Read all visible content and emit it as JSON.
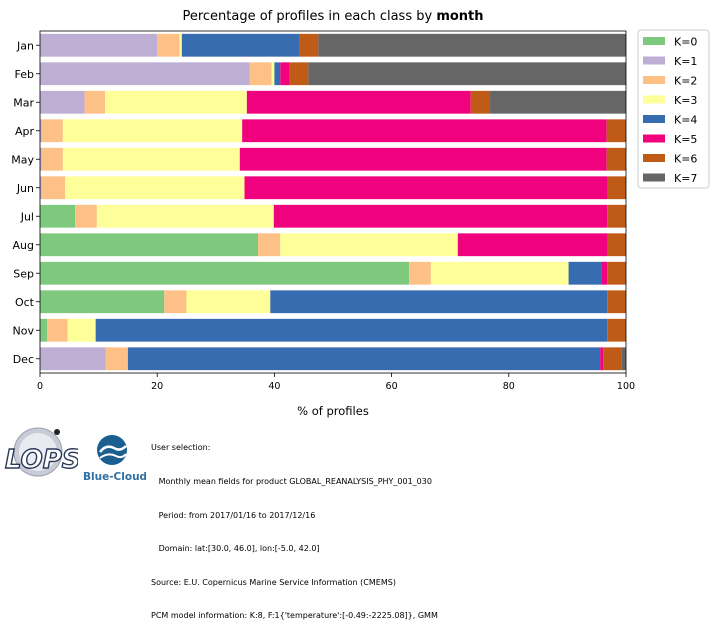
{
  "chart_data": {
    "type": "bar",
    "orientation": "horizontal",
    "stacked": true,
    "title_prefix": "Percentage of profiles in each class by ",
    "title_bold": "month",
    "xlabel": "% of profiles",
    "ylabel": "",
    "xlim": [
      0,
      100
    ],
    "x_ticks": [
      "0",
      "20",
      "40",
      "60",
      "80",
      "100"
    ],
    "grid": false,
    "legend_position": "outside top-right",
    "categories": [
      "Jan",
      "Feb",
      "Mar",
      "Apr",
      "May",
      "Jun",
      "Jul",
      "Aug",
      "Sep",
      "Oct",
      "Nov",
      "Dec"
    ],
    "series": [
      {
        "name": "K=0",
        "color": "#7fc97f",
        "values": [
          0,
          0,
          0,
          0,
          0,
          0,
          6.0,
          37.2,
          63.0,
          21.2,
          1.2,
          0
        ]
      },
      {
        "name": "K=1",
        "color": "#beaed4",
        "values": [
          20.0,
          35.8,
          7.6,
          0.3,
          0.3,
          0.3,
          0,
          0,
          0,
          0,
          0,
          11.2
        ]
      },
      {
        "name": "K=2",
        "color": "#fdc086",
        "values": [
          3.8,
          3.7,
          3.5,
          3.6,
          3.6,
          4.0,
          3.7,
          3.8,
          3.7,
          3.8,
          3.5,
          3.8
        ]
      },
      {
        "name": "K=3",
        "color": "#ffff99",
        "values": [
          0.4,
          0.5,
          24.2,
          30.6,
          30.2,
          30.6,
          30.2,
          30.3,
          23.5,
          14.3,
          4.8,
          0
        ]
      },
      {
        "name": "K=4",
        "color": "#386cb0",
        "values": [
          20.1,
          1.0,
          0,
          0,
          0,
          0,
          0,
          0,
          5.6,
          57.5,
          87.3,
          80.6
        ]
      },
      {
        "name": "K=5",
        "color": "#f0027f",
        "values": [
          0,
          1.6,
          38.2,
          62.2,
          62.6,
          62.0,
          56.9,
          25.6,
          1.0,
          0,
          0,
          0.5
        ]
      },
      {
        "name": "K=6",
        "color": "#bf5b17",
        "values": [
          3.2,
          3.2,
          3.3,
          3.3,
          3.3,
          3.1,
          3.2,
          3.1,
          3.2,
          3.2,
          3.2,
          3.2
        ]
      },
      {
        "name": "K=7",
        "color": "#666666",
        "values": [
          52.5,
          54.2,
          23.2,
          0,
          0,
          0,
          0,
          0,
          0,
          0,
          0,
          0.7
        ]
      }
    ]
  },
  "footer": {
    "lines": [
      "User selection:",
      "   Monthly mean fields for product GLOBAL_REANALYSIS_PHY_001_030",
      "   Period: from 2017/01/16 to 2017/12/16",
      "   Domain: lat:[30.0, 46.0], lon:[-5.0, 42.0]",
      "Source: E.U. Copernicus Marine Service Information (CMEMS)",
      "PCM model information: K:8, F:1{'temperature':[-0.49:-2225.08]}, GMM"
    ],
    "logo_lops_text": "LOPS",
    "logo_bluecloud_text": "Blue-Cloud"
  }
}
